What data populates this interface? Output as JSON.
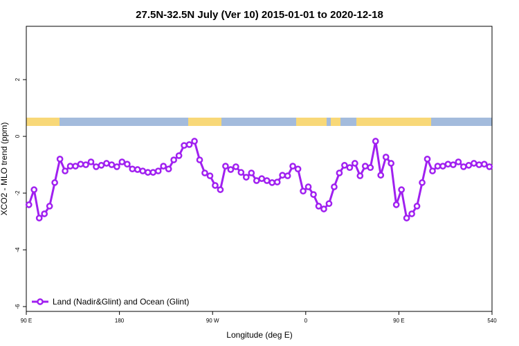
{
  "chart_data": {
    "type": "line",
    "title": "27.5N-32.5N July (Ver 10)   2015-01-01 to 2020-12-18",
    "xlabel": "Longitude (deg E)",
    "ylabel": "XCO2 - MLO trend (ppm)",
    "xlim": [
      90,
      540
    ],
    "ylim": [
      -6.17,
      3.88
    ],
    "xticks": [
      {
        "value": 90,
        "label": "90 E"
      },
      180,
      {
        "value": 270,
        "label": "90 W"
      },
      {
        "value": 360,
        "label": "0"
      },
      {
        "value": 450,
        "label": "90 E"
      },
      540
    ],
    "yticks": [
      2,
      0,
      -2,
      -4,
      -6
    ],
    "legend_position": "bottom-left",
    "x": [
      92.5,
      97.5,
      102.5,
      107.5,
      112.5,
      117.5,
      122.5,
      127.5,
      132.5,
      137.5,
      142.5,
      147.5,
      152.5,
      157.5,
      162.5,
      167.5,
      172.5,
      177.5,
      182.5,
      187.5,
      192.5,
      197.5,
      202.5,
      207.5,
      212.5,
      217.5,
      222.5,
      227.5,
      232.5,
      237.5,
      242.5,
      247.5,
      252.5,
      257.5,
      262.5,
      267.5,
      272.5,
      277.5,
      282.5,
      287.5,
      292.5,
      297.5,
      302.5,
      307.5,
      312.5,
      317.5,
      322.5,
      327.5,
      332.5,
      337.5,
      342.5,
      347.5,
      352.5,
      357.5,
      362.5,
      367.5,
      372.5,
      377.5,
      382.5,
      387.5,
      392.5,
      397.5,
      402.5,
      407.5,
      412.5,
      417.5,
      422.5,
      427.5,
      432.5,
      437.5,
      442.5,
      447.5,
      452.5,
      457.5,
      462.5,
      467.5,
      472.5,
      477.5,
      482.5,
      487.5,
      492.5,
      497.5,
      502.5,
      507.5,
      512.5,
      517.5,
      522.5,
      527.5,
      532.5,
      537.5
    ],
    "series": [
      {
        "name": "Land (Nadir&Glint) and Ocean (Glint)",
        "color": "#a020f0",
        "values": [
          -2.41,
          -1.88,
          -2.88,
          -2.73,
          -2.46,
          -1.63,
          -0.8,
          -1.22,
          -1.05,
          -1.05,
          -0.98,
          -1.0,
          -0.9,
          -1.07,
          -1.02,
          -0.95,
          -1.0,
          -1.07,
          -0.9,
          -0.98,
          -1.15,
          -1.17,
          -1.22,
          -1.27,
          -1.27,
          -1.22,
          -1.05,
          -1.15,
          -0.83,
          -0.68,
          -0.32,
          -0.29,
          -0.17,
          -0.83,
          -1.29,
          -1.39,
          -1.73,
          -1.88,
          -1.05,
          -1.17,
          -1.07,
          -1.27,
          -1.44,
          -1.29,
          -1.56,
          -1.49,
          -1.56,
          -1.63,
          -1.61,
          -1.37,
          -1.39,
          -1.05,
          -1.15,
          -1.93,
          -1.78,
          -2.05,
          -2.46,
          -2.56,
          -2.37,
          -1.78,
          -1.29,
          -1.02,
          -1.1,
          -0.95,
          -1.39,
          -1.05,
          -1.1,
          -0.17,
          -1.37,
          -0.73,
          -0.95,
          -2.41,
          -1.88,
          -2.88,
          -2.73,
          -2.46,
          -1.63,
          -0.8,
          -1.22,
          -1.05,
          -1.05,
          -0.98,
          -1.0,
          -0.9,
          -1.07,
          -1.02,
          -0.95,
          -1.0,
          -0.98,
          -1.07
        ]
      }
    ]
  }
}
